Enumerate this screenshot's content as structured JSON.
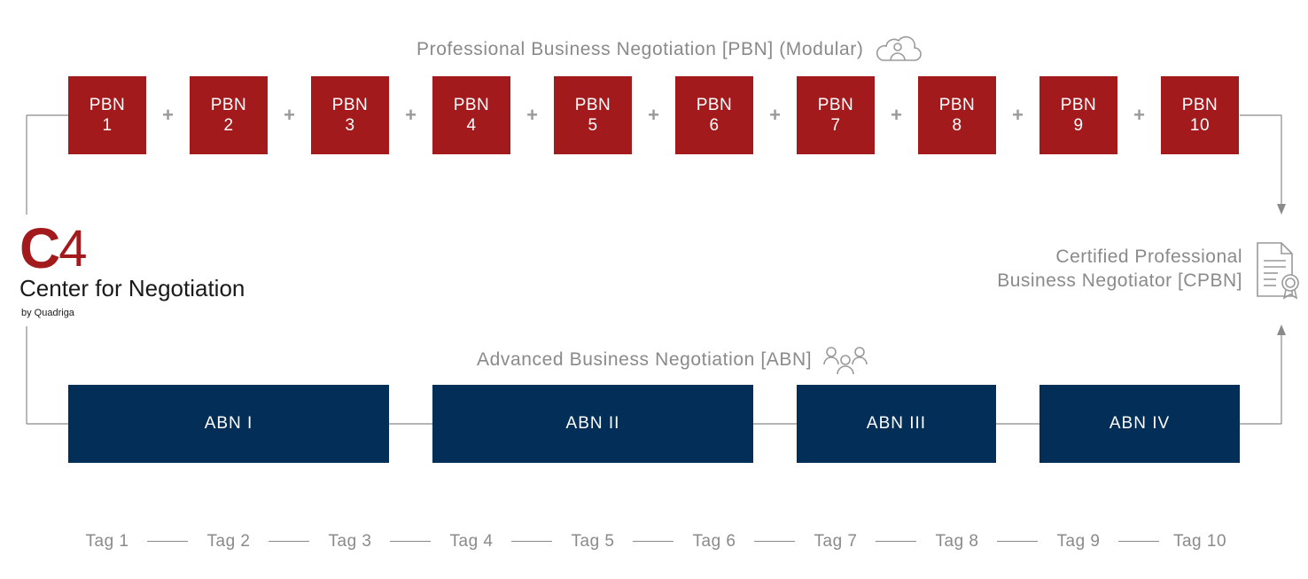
{
  "pbn_section": {
    "title": "Professional Business Negotiation [PBN] (Modular)",
    "icon": "cloud-person-icon",
    "modules": [
      {
        "label": "PBN",
        "number": "1"
      },
      {
        "label": "PBN",
        "number": "2"
      },
      {
        "label": "PBN",
        "number": "3"
      },
      {
        "label": "PBN",
        "number": "4"
      },
      {
        "label": "PBN",
        "number": "5"
      },
      {
        "label": "PBN",
        "number": "6"
      },
      {
        "label": "PBN",
        "number": "7"
      },
      {
        "label": "PBN",
        "number": "8"
      },
      {
        "label": "PBN",
        "number": "9"
      },
      {
        "label": "PBN",
        "number": "10"
      }
    ],
    "connector": "+"
  },
  "abn_section": {
    "title": "Advanced Business Negotiation [ABN]",
    "icon": "group-people-icon",
    "modules": [
      {
        "label": "ABN I",
        "days": 3
      },
      {
        "label": "ABN II",
        "days": 3
      },
      {
        "label": "ABN III",
        "days": 2
      },
      {
        "label": "ABN IV",
        "days": 2
      }
    ]
  },
  "logo": {
    "mark_letter": "C",
    "mark_number": "4",
    "name": "Center for Negotiation",
    "sub": "by Quadriga"
  },
  "certificate": {
    "line1": "Certified Professional",
    "line2": "Business Negotiator [CPBN]",
    "icon": "certificate-document-icon"
  },
  "timeline": {
    "days": [
      "Tag 1",
      "Tag 2",
      "Tag 3",
      "Tag 4",
      "Tag 5",
      "Tag 6",
      "Tag 7",
      "Tag 8",
      "Tag 9",
      "Tag 10"
    ]
  },
  "colors": {
    "pbn": "#a31a1d",
    "abn": "#032e57",
    "text_gray": "#8a8a8a",
    "line_gray": "#8a8a8a"
  }
}
